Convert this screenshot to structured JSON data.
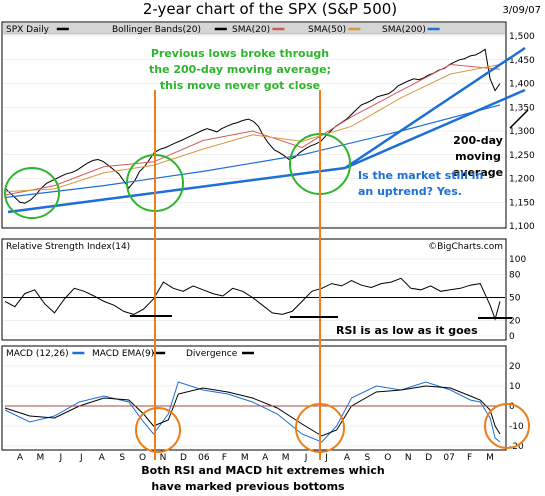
{
  "chart_data": [
    {
      "type": "line",
      "title": "2-year chart of the SPX  (S&P 500)",
      "date": "3/09/07",
      "legend": [
        "SPX Daily",
        "Bollinger Bands(20)",
        "SMA(20)",
        "SMA(50)",
        "SMA(200)"
      ],
      "y_ticks": [
        "1,500",
        "1,450",
        "1,400",
        "1,350",
        "1,300",
        "1,250",
        "1,200",
        "1,150",
        "1,100"
      ],
      "ylim": [
        1100,
        1500
      ],
      "x_ticks": [
        "A",
        "M",
        "J",
        "J",
        "A",
        "S",
        "O",
        "N",
        "D",
        "06",
        "F",
        "M",
        "A",
        "M",
        "J",
        "J",
        "A",
        "S",
        "O",
        "N",
        "D",
        "07",
        "F",
        "M"
      ],
      "series": [
        {
          "name": "SPX Daily",
          "color": "#000000",
          "x": [
            0,
            5,
            10,
            15,
            20,
            26,
            31,
            36,
            42,
            47,
            52,
            57,
            62,
            68,
            73,
            78,
            83,
            89,
            94,
            99,
            104,
            109,
            115,
            120,
            125,
            131,
            136,
            141,
            146,
            151,
            157,
            162,
            167,
            172,
            178,
            183,
            188,
            193,
            198,
            204,
            209,
            214,
            219,
            224,
            230,
            235,
            240,
            246,
            251,
            256,
            261,
            266,
            272,
            277,
            282,
            287,
            293,
            298,
            303,
            308,
            313,
            319,
            324,
            329,
            334,
            340,
            345,
            350,
            355,
            360,
            366,
            371,
            376,
            381,
            387,
            392,
            397,
            402,
            407,
            413,
            418,
            423,
            428,
            433,
            438,
            444,
            449,
            454,
            459,
            464,
            470,
            475,
            480,
            485,
            490,
            495,
            500
          ],
          "values": [
            1180,
            1170,
            1160,
            1150,
            1148,
            1155,
            1165,
            1178,
            1190,
            1195,
            1200,
            1205,
            1210,
            1213,
            1218,
            1225,
            1232,
            1238,
            1240,
            1236,
            1228,
            1220,
            1210,
            1195,
            1180,
            1195,
            1215,
            1225,
            1240,
            1255,
            1262,
            1265,
            1270,
            1275,
            1280,
            1285,
            1290,
            1295,
            1300,
            1305,
            1302,
            1298,
            1305,
            1310,
            1315,
            1318,
            1322,
            1325,
            1320,
            1310,
            1290,
            1275,
            1260,
            1255,
            1248,
            1240,
            1245,
            1255,
            1262,
            1268,
            1272,
            1278,
            1290,
            1300,
            1310,
            1318,
            1325,
            1335,
            1345,
            1355,
            1360,
            1365,
            1372,
            1375,
            1378,
            1385,
            1395,
            1400,
            1405,
            1410,
            1408,
            1412,
            1418,
            1422,
            1428,
            1432,
            1440,
            1445,
            1450,
            1452,
            1458,
            1460,
            1465,
            1472,
            1410,
            1385,
            1400
          ]
        },
        {
          "name": "SMA(20)",
          "color": "#d45a5a",
          "x": [
            0,
            50,
            100,
            150,
            200,
            250,
            300,
            350,
            400,
            450,
            500
          ],
          "values": [
            1165,
            1185,
            1225,
            1235,
            1280,
            1300,
            1265,
            1330,
            1385,
            1440,
            1430
          ]
        },
        {
          "name": "SMA(50)",
          "color": "#d69a3c",
          "x": [
            0,
            50,
            100,
            150,
            200,
            250,
            300,
            350,
            400,
            450,
            500
          ],
          "values": [
            1172,
            1178,
            1212,
            1228,
            1262,
            1292,
            1278,
            1310,
            1370,
            1420,
            1440
          ]
        },
        {
          "name": "SMA(200)",
          "color": "#1c6fd6",
          "x": [
            0,
            100,
            200,
            300,
            400,
            500
          ],
          "values": [
            1160,
            1185,
            1215,
            1250,
            1300,
            1355
          ]
        }
      ]
    },
    {
      "type": "line",
      "title": "Relative Strength Index(14)",
      "y_ticks": [
        "100",
        "80",
        "50",
        "20",
        "0"
      ],
      "ylim": [
        0,
        100
      ],
      "series": [
        {
          "name": "Relative Strength Index(14)",
          "color": "#000000",
          "x": [
            0,
            10,
            20,
            30,
            40,
            50,
            60,
            70,
            80,
            90,
            100,
            110,
            120,
            130,
            140,
            150,
            160,
            170,
            180,
            190,
            200,
            210,
            220,
            230,
            240,
            250,
            260,
            270,
            280,
            290,
            300,
            310,
            320,
            330,
            340,
            350,
            360,
            370,
            380,
            390,
            400,
            410,
            420,
            430,
            440,
            450,
            460,
            470,
            480,
            490,
            495,
            500
          ],
          "values": [
            45,
            38,
            55,
            60,
            42,
            30,
            48,
            62,
            58,
            52,
            45,
            40,
            32,
            28,
            35,
            48,
            70,
            62,
            58,
            65,
            60,
            55,
            52,
            62,
            58,
            50,
            40,
            30,
            28,
            32,
            45,
            58,
            62,
            68,
            65,
            72,
            66,
            63,
            68,
            70,
            75,
            62,
            60,
            65,
            58,
            60,
            62,
            66,
            68,
            40,
            22,
            45
          ]
        }
      ]
    },
    {
      "type": "line",
      "title": "MACD (12,26)",
      "legend": [
        "MACD (12,26)",
        "MACD EMA(9)",
        "Divergence"
      ],
      "y_ticks": [
        "20",
        "10",
        "0",
        "-10",
        "-20"
      ],
      "ylim": [
        -20,
        20
      ],
      "series": [
        {
          "name": "MACD (12,26)",
          "color": "#1c6fd6",
          "x": [
            0,
            25,
            50,
            75,
            100,
            125,
            140,
            150,
            165,
            175,
            200,
            225,
            250,
            275,
            300,
            320,
            335,
            350,
            375,
            400,
            425,
            450,
            470,
            480,
            490,
            495,
            500
          ],
          "values": [
            -2,
            -8,
            -5,
            2,
            5,
            2,
            -8,
            -14,
            -4,
            12,
            8,
            6,
            2,
            -4,
            -14,
            -18,
            -10,
            4,
            10,
            8,
            12,
            8,
            3,
            2,
            -6,
            -16,
            -18
          ]
        },
        {
          "name": "MACD EMA(9)",
          "color": "#000000",
          "x": [
            0,
            25,
            50,
            75,
            100,
            125,
            140,
            150,
            165,
            175,
            200,
            225,
            250,
            275,
            300,
            320,
            335,
            350,
            375,
            400,
            425,
            450,
            470,
            480,
            490,
            495,
            500
          ],
          "values": [
            -1,
            -5,
            -6,
            0,
            4,
            3,
            -4,
            -10,
            -7,
            6,
            9,
            7,
            4,
            -1,
            -9,
            -15,
            -12,
            0,
            7,
            8,
            10,
            9,
            5,
            3,
            -2,
            -10,
            -14
          ]
        },
        {
          "name": "Divergence",
          "color": "#a34a4a",
          "x": [
            0,
            500
          ],
          "values": [
            0,
            0
          ]
        }
      ]
    }
  ],
  "annotations": {
    "lows_line1": "Previous lows broke through",
    "lows_line2": "the 200-day moving average;",
    "lows_line3": "this move never got close",
    "ma_line1": "200-day",
    "ma_line2": "moving",
    "ma_line3": "average",
    "uptrend_line1": "Is the market still in",
    "uptrend_line2": "an uptrend? Yes.",
    "rsi_note": "RSI is as low as it goes",
    "bottom_line1": "Both RSI and MACD hit extremes which",
    "bottom_line2": "have marked previous bottoms",
    "bigcharts": "©BigCharts.com"
  },
  "colors": {
    "annotation_green": "#2db52d",
    "annotation_blue": "#1c6fd6",
    "arrow_orange": "#ef7d1a",
    "legend_bg": "#d5d5d5"
  }
}
